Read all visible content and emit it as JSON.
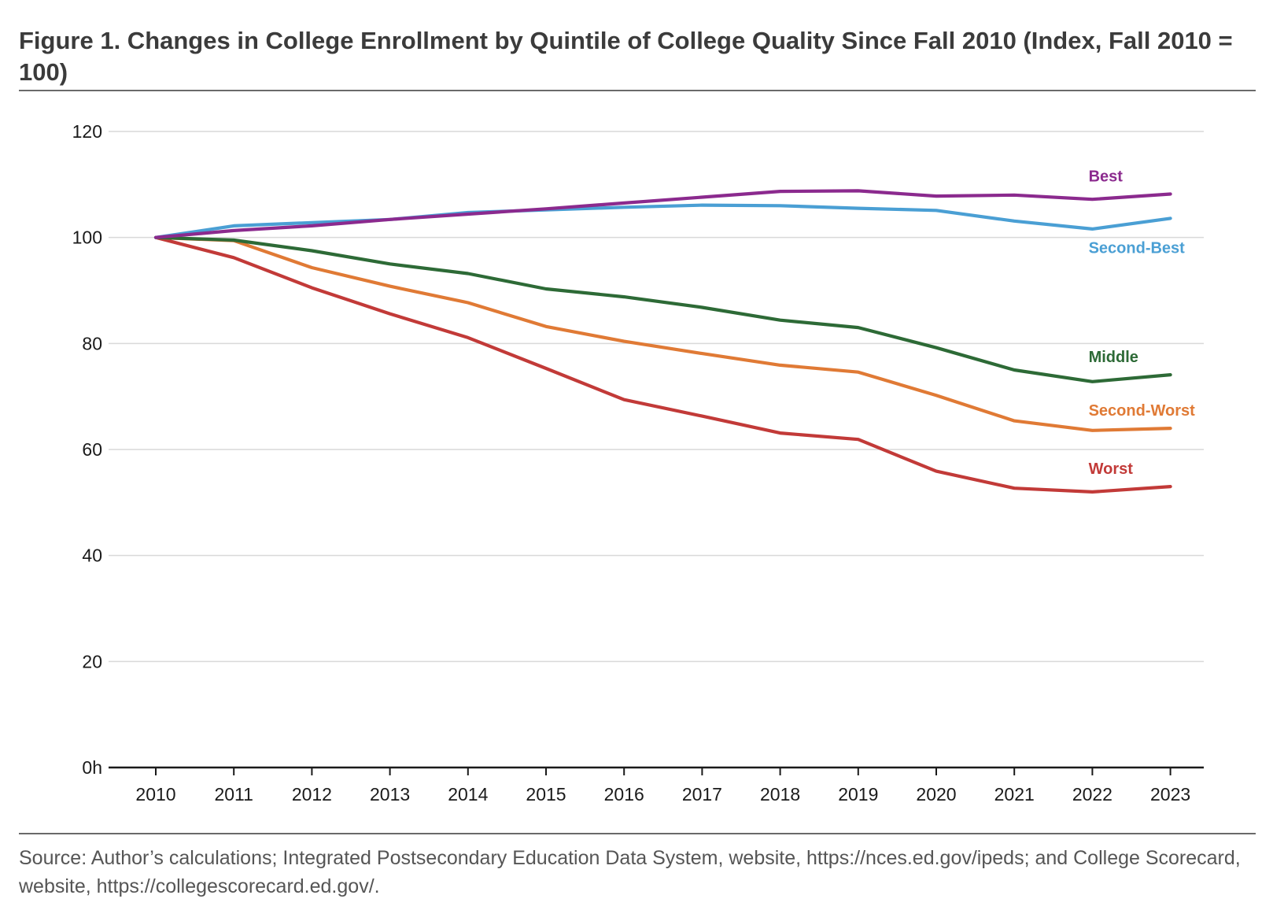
{
  "title": "Figure 1. Changes in College Enrollment by Quintile of College Quality Since Fall 2010 (Index, Fall 2010 = 100)",
  "source": "Source: Author’s calculations; Integrated Postsecondary Education Data System, website, https://nces.ed.gov/ipeds; and College Scorecard, website, https://collegescorecard.ed.gov/.",
  "chart_data": {
    "type": "line",
    "title": "Figure 1. Changes in College Enrollment by Quintile of College Quality Since Fall 2010 (Index, Fall 2010 = 100)",
    "xlabel": "",
    "ylabel": "",
    "x": [
      "2010",
      "2011",
      "2012",
      "2013",
      "2014",
      "2015",
      "2016",
      "2017",
      "2018",
      "2019",
      "2020",
      "2021",
      "2022",
      "2023"
    ],
    "ylim": [
      0,
      120
    ],
    "yticks": [
      {
        "value": 120,
        "label": "120"
      },
      {
        "value": 100,
        "label": "100"
      },
      {
        "value": 80,
        "label": "80"
      },
      {
        "value": 60,
        "label": "60"
      },
      {
        "value": 40,
        "label": "40"
      },
      {
        "value": 20,
        "label": "20"
      },
      {
        "value": 0,
        "label": "0h"
      }
    ],
    "grid": true,
    "legend": "inline labels at right end of lines",
    "series": [
      {
        "name": "Best",
        "color": "#8b2a8e",
        "values": [
          100,
          101.3,
          102.2,
          103.4,
          104.4,
          105.4,
          106.5,
          107.6,
          108.7,
          108.8,
          107.8,
          108.0,
          107.2,
          108.2
        ]
      },
      {
        "name": "Second-Best",
        "color": "#4a9fd4",
        "values": [
          100,
          102.2,
          102.8,
          103.4,
          104.7,
          105.2,
          105.7,
          106.1,
          106.0,
          105.5,
          105.1,
          103.1,
          101.6,
          103.6
        ]
      },
      {
        "name": "Middle",
        "color": "#2d6a36",
        "values": [
          100,
          99.5,
          97.5,
          95.0,
          93.2,
          90.3,
          88.8,
          86.8,
          84.4,
          83.0,
          79.2,
          75.0,
          72.8,
          74.1
        ]
      },
      {
        "name": "Second-Worst",
        "color": "#e07a35",
        "values": [
          100,
          99.4,
          94.3,
          90.8,
          87.7,
          83.2,
          80.4,
          78.1,
          75.9,
          74.6,
          70.2,
          65.4,
          63.6,
          64.0
        ]
      },
      {
        "name": "Worst",
        "color": "#c23a38",
        "values": [
          100,
          96.2,
          90.5,
          85.6,
          81.1,
          75.3,
          69.4,
          66.3,
          63.1,
          61.9,
          55.9,
          52.7,
          52.0,
          53.0
        ]
      }
    ]
  }
}
